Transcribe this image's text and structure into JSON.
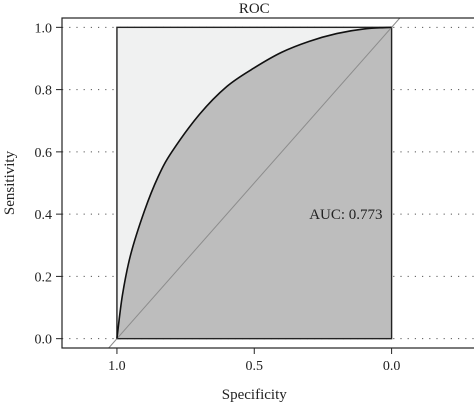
{
  "chart_data": {
    "type": "line",
    "title": "ROC",
    "xlabel": "Specificity",
    "ylabel": "Sensitivity",
    "x_reversed": true,
    "xlim": [
      1.2,
      -0.3
    ],
    "ylim": [
      -0.03,
      1.03
    ],
    "x_ticks": [
      1.0,
      0.5,
      0.0
    ],
    "y_ticks": [
      0.0,
      0.2,
      0.4,
      0.6,
      0.8,
      1.0
    ],
    "grid": "dotted horizontal",
    "annotation": {
      "text": "AUC: 0.773",
      "x": 0.3,
      "y": 0.4
    },
    "series": [
      {
        "specificity": [
          1.0,
          0.98,
          0.95,
          0.9,
          0.85,
          0.8,
          0.7,
          0.6,
          0.5,
          0.4,
          0.3,
          0.2,
          0.1,
          0.0
        ],
        "sensitivity": [
          0.0,
          0.14,
          0.27,
          0.41,
          0.52,
          0.6,
          0.72,
          0.81,
          0.87,
          0.92,
          0.955,
          0.98,
          0.995,
          1.0
        ]
      }
    ],
    "colors": {
      "auc_fill": "#bdbdbd",
      "upper_fill": "#f0f1f1",
      "curve": "#111111",
      "diagonal": "#8c8c8c",
      "grid": "#555555",
      "frame": "#222222"
    }
  }
}
